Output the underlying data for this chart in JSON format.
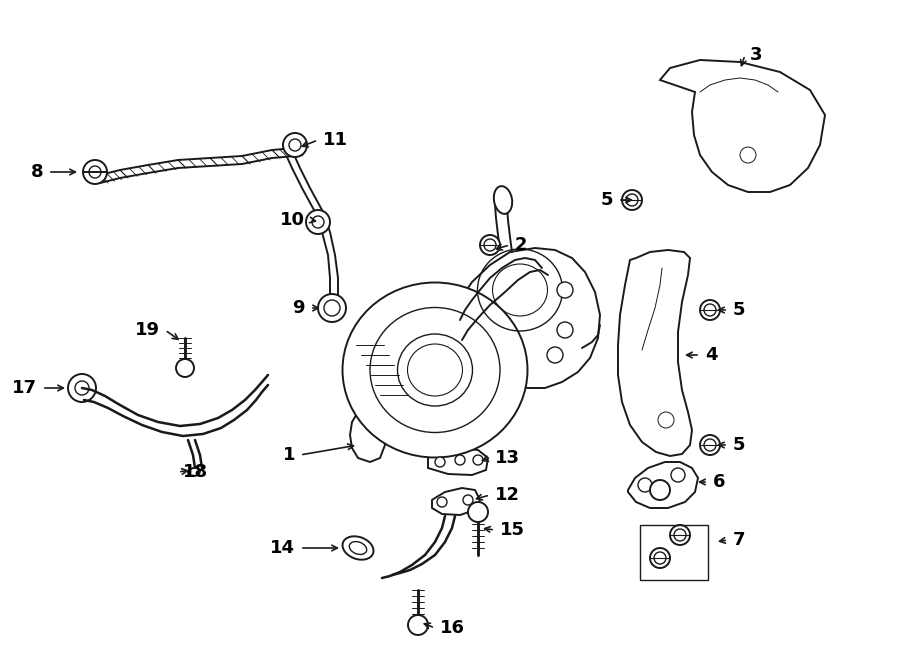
{
  "background_color": "#ffffff",
  "line_color": "#1a1a1a",
  "text_color": "#000000",
  "label_fontsize": 13,
  "fig_width": 9.0,
  "fig_height": 6.62,
  "dpi": 100
}
